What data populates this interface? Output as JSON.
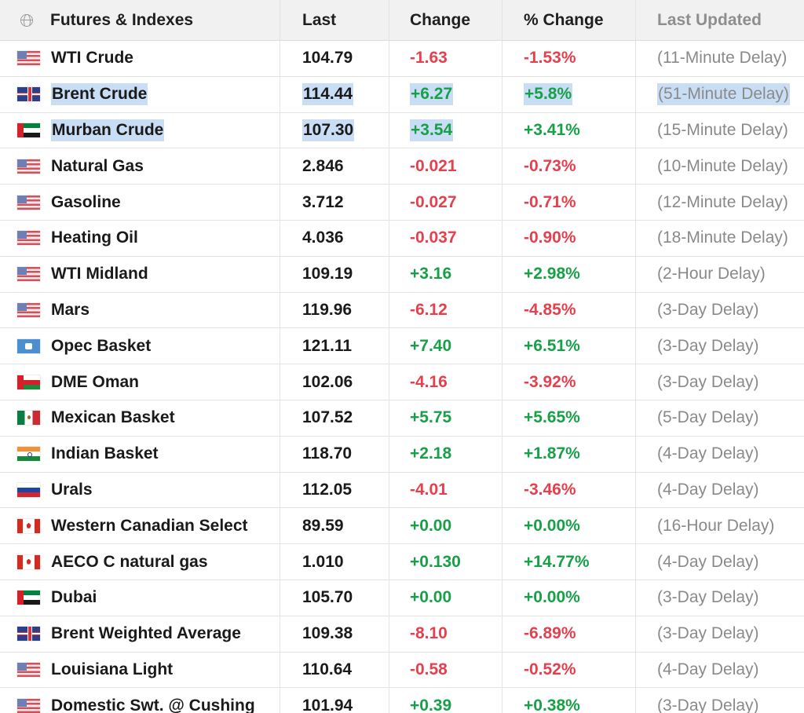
{
  "header": {
    "name": "Futures & Indexes",
    "last": "Last",
    "change": "Change",
    "pct_change": "% Change",
    "last_updated": "Last Updated"
  },
  "colors": {
    "positive": "#18a048",
    "negative": "#e4404e",
    "highlight": "#c9ddf5"
  },
  "rows": [
    {
      "flag": "us-flag-icon",
      "name": "WTI Crude",
      "last": "104.79",
      "change": "-1.63",
      "pct": "-1.53%",
      "updated": "(11-Minute Delay)"
    },
    {
      "flag": "uk-flag-icon",
      "name": "Brent Crude",
      "last": "114.44",
      "change": "+6.27",
      "pct": "+5.8%",
      "updated": "(51-Minute Delay)"
    },
    {
      "flag": "uae-flag-icon",
      "name": "Murban Crude",
      "last": "107.30",
      "change": "+3.54",
      "pct": "+3.41%",
      "updated": "(15-Minute Delay)"
    },
    {
      "flag": "us-flag-icon",
      "name": "Natural Gas",
      "last": "2.846",
      "change": "-0.021",
      "pct": "-0.73%",
      "updated": "(10-Minute Delay)"
    },
    {
      "flag": "us-flag-icon",
      "name": "Gasoline",
      "last": "3.712",
      "change": "-0.027",
      "pct": "-0.71%",
      "updated": "(12-Minute Delay)"
    },
    {
      "flag": "us-flag-icon",
      "name": "Heating Oil",
      "last": "4.036",
      "change": "-0.037",
      "pct": "-0.90%",
      "updated": "(18-Minute Delay)"
    },
    {
      "flag": "us-flag-icon",
      "name": "WTI Midland",
      "last": "109.19",
      "change": "+3.16",
      "pct": "+2.98%",
      "updated": "(2-Hour Delay)"
    },
    {
      "flag": "us-flag-icon",
      "name": "Mars",
      "last": "119.96",
      "change": "-6.12",
      "pct": "-4.85%",
      "updated": "(3-Day Delay)"
    },
    {
      "flag": "opec-flag-icon",
      "name": "Opec Basket",
      "last": "121.11",
      "change": "+7.40",
      "pct": "+6.51%",
      "updated": "(3-Day Delay)"
    },
    {
      "flag": "oman-flag-icon",
      "name": "DME Oman",
      "last": "102.06",
      "change": "-4.16",
      "pct": "-3.92%",
      "updated": "(3-Day Delay)"
    },
    {
      "flag": "mexico-flag-icon",
      "name": "Mexican Basket",
      "last": "107.52",
      "change": "+5.75",
      "pct": "+5.65%",
      "updated": "(5-Day Delay)"
    },
    {
      "flag": "india-flag-icon",
      "name": "Indian Basket",
      "last": "118.70",
      "change": "+2.18",
      "pct": "+1.87%",
      "updated": "(4-Day Delay)"
    },
    {
      "flag": "russia-flag-icon",
      "name": "Urals",
      "last": "112.05",
      "change": "-4.01",
      "pct": "-3.46%",
      "updated": "(4-Day Delay)"
    },
    {
      "flag": "canada-flag-icon",
      "name": "Western Canadian Select",
      "last": "89.59",
      "change": "+0.00",
      "pct": "+0.00%",
      "updated": "(16-Hour Delay)"
    },
    {
      "flag": "canada-flag-icon",
      "name": "AECO C natural gas",
      "last": "1.010",
      "change": "+0.130",
      "pct": "+14.77%",
      "updated": "(4-Day Delay)"
    },
    {
      "flag": "uae-flag-icon",
      "name": "Dubai",
      "last": "105.70",
      "change": "+0.00",
      "pct": "+0.00%",
      "updated": "(3-Day Delay)"
    },
    {
      "flag": "uk-flag-icon",
      "name": "Brent Weighted Average",
      "last": "109.38",
      "change": "-8.10",
      "pct": "-6.89%",
      "updated": "(3-Day Delay)"
    },
    {
      "flag": "us-flag-icon",
      "name": "Louisiana Light",
      "last": "110.64",
      "change": "-0.58",
      "pct": "-0.52%",
      "updated": "(4-Day Delay)"
    },
    {
      "flag": "us-flag-icon",
      "name": "Domestic Swt. @ Cushing",
      "last": "101.94",
      "change": "+0.39",
      "pct": "+0.38%",
      "updated": "(3-Day Delay)"
    }
  ]
}
